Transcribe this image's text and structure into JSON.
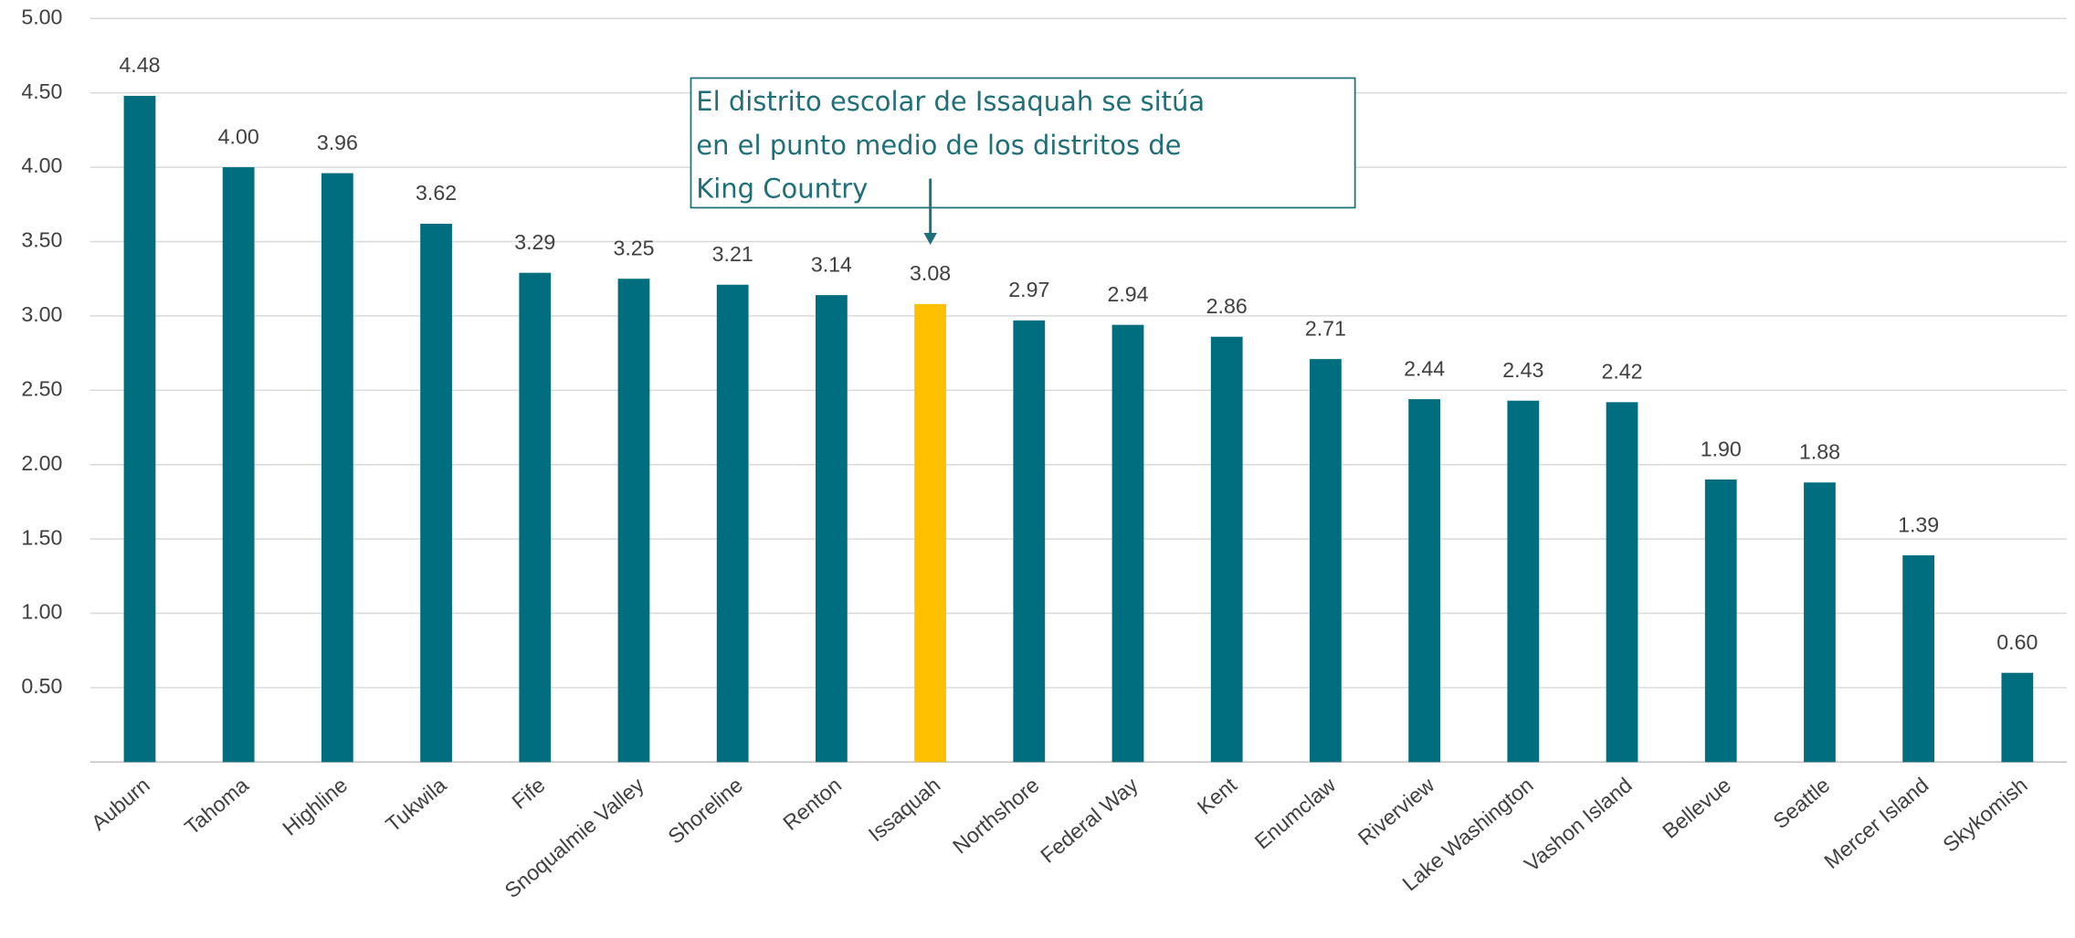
{
  "chart_data": {
    "type": "bar",
    "categories": [
      "Auburn",
      "Tahoma",
      "Highline",
      "Tukwila",
      "Fife",
      "Snoqualmie Valley",
      "Shoreline",
      "Renton",
      "Issaquah",
      "Northshore",
      "Federal Way",
      "Kent",
      "Enumclaw",
      "Riverview",
      "Lake Washington",
      "Vashon Island",
      "Bellevue",
      "Seattle",
      "Mercer Island",
      "Skykomish"
    ],
    "values": [
      4.48,
      4.0,
      3.96,
      3.62,
      3.29,
      3.25,
      3.21,
      3.14,
      3.08,
      2.97,
      2.94,
      2.86,
      2.71,
      2.44,
      2.43,
      2.42,
      1.9,
      1.88,
      1.39,
      0.6
    ],
    "value_labels": [
      "4.48",
      "4.00",
      "3.96",
      "3.62",
      "3.29",
      "3.25",
      "3.21",
      "3.14",
      "3.08",
      "2.97",
      "2.94",
      "2.86",
      "2.71",
      "2.44",
      "2.43",
      "2.42",
      "1.90",
      "1.88",
      "1.39",
      "0.60"
    ],
    "colors": [
      "#006e7f",
      "#006e7f",
      "#006e7f",
      "#006e7f",
      "#006e7f",
      "#006e7f",
      "#006e7f",
      "#006e7f",
      "#ffc000",
      "#006e7f",
      "#006e7f",
      "#006e7f",
      "#006e7f",
      "#006e7f",
      "#006e7f",
      "#006e7f",
      "#006e7f",
      "#006e7f",
      "#006e7f",
      "#006e7f"
    ],
    "ylim": [
      0,
      5
    ],
    "yticks": [
      {
        "value": 0.5,
        "label": "0.50"
      },
      {
        "value": 1,
        "label": "1.00"
      },
      {
        "value": 1.5,
        "label": "1.50"
      },
      {
        "value": 2,
        "label": "2.00"
      },
      {
        "value": 2.5,
        "label": "2.50"
      },
      {
        "value": 3,
        "label": "3.00"
      },
      {
        "value": 3.5,
        "label": "3.50"
      },
      {
        "value": 4,
        "label": "4.00"
      },
      {
        "value": 4.5,
        "label": "4.50"
      },
      {
        "value": 5,
        "label": "5.00"
      }
    ],
    "grid": true,
    "annotation": [
      "El distrito escolar de Issaquah se sitúa",
      "en el punto medio de los distritos de",
      "King Country"
    ]
  }
}
